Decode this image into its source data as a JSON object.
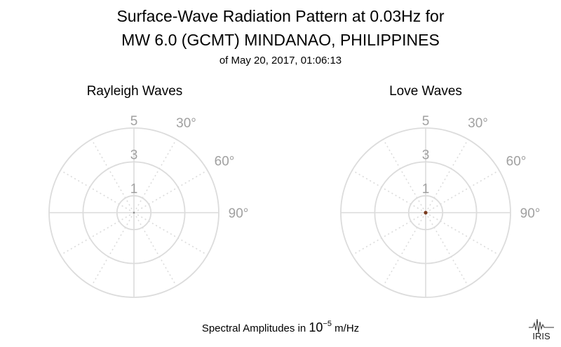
{
  "figure": {
    "title_line1": "Surface-Wave Radiation Pattern at 0.03Hz for",
    "title_line2": "MW 6.0 (GCMT) MINDANAO, PHILIPPINES",
    "subtitle": "of May 20, 2017, 01:06:13",
    "footer_prefix": "Spectral Amplitudes in ",
    "footer_base": "10",
    "footer_exponent": "−5",
    "footer_unit": " m/Hz",
    "logo_text": "IRIS"
  },
  "colors": {
    "grid": "#dcdcdc",
    "tick_label": "#a0a0a0",
    "love_marker": "#7a3b1e",
    "rayleigh_marker": "#8a8a8a"
  },
  "chart_data": [
    {
      "type": "polar",
      "title": "Rayleigh Waves",
      "r_ticks": [
        "1",
        "3",
        "5"
      ],
      "r_values": [
        1,
        3,
        5
      ],
      "theta_ticks": [
        "30°",
        "60°",
        "90°"
      ],
      "theta_values": [
        30,
        60,
        90
      ],
      "theta_zero": "top",
      "theta_direction": "clockwise",
      "rlim": [
        0,
        5
      ],
      "grid": true,
      "values": [
        0,
        0
      ],
      "marker_color": "#8a8a8a"
    },
    {
      "type": "polar",
      "title": "Love Waves",
      "r_ticks": [
        "1",
        "3",
        "5"
      ],
      "r_values": [
        1,
        3,
        5
      ],
      "theta_ticks": [
        "30°",
        "60°",
        "90°"
      ],
      "theta_values": [
        30,
        60,
        90
      ],
      "theta_zero": "top",
      "theta_direction": "clockwise",
      "rlim": [
        0,
        5
      ],
      "grid": true,
      "values": [
        0.2,
        0.2
      ],
      "marker_color": "#7a3b1e"
    }
  ]
}
